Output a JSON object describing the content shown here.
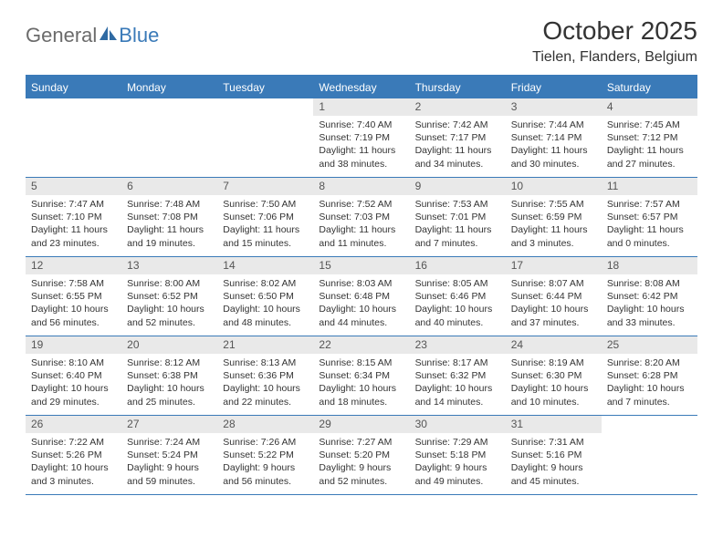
{
  "logo": {
    "text1": "General",
    "text2": "Blue"
  },
  "title": "October 2025",
  "location": "Tielen, Flanders, Belgium",
  "colors": {
    "accent": "#3a7ab8",
    "header_bg": "#3a7ab8",
    "daynum_bg": "#e9e9e9",
    "text": "#333333",
    "logo_grey": "#6b6b6b"
  },
  "day_headers": [
    "Sunday",
    "Monday",
    "Tuesday",
    "Wednesday",
    "Thursday",
    "Friday",
    "Saturday"
  ],
  "weeks": [
    [
      {
        "day": "",
        "sunrise": "",
        "sunset": "",
        "daylight": ""
      },
      {
        "day": "",
        "sunrise": "",
        "sunset": "",
        "daylight": ""
      },
      {
        "day": "",
        "sunrise": "",
        "sunset": "",
        "daylight": ""
      },
      {
        "day": "1",
        "sunrise": "Sunrise: 7:40 AM",
        "sunset": "Sunset: 7:19 PM",
        "daylight": "Daylight: 11 hours and 38 minutes."
      },
      {
        "day": "2",
        "sunrise": "Sunrise: 7:42 AM",
        "sunset": "Sunset: 7:17 PM",
        "daylight": "Daylight: 11 hours and 34 minutes."
      },
      {
        "day": "3",
        "sunrise": "Sunrise: 7:44 AM",
        "sunset": "Sunset: 7:14 PM",
        "daylight": "Daylight: 11 hours and 30 minutes."
      },
      {
        "day": "4",
        "sunrise": "Sunrise: 7:45 AM",
        "sunset": "Sunset: 7:12 PM",
        "daylight": "Daylight: 11 hours and 27 minutes."
      }
    ],
    [
      {
        "day": "5",
        "sunrise": "Sunrise: 7:47 AM",
        "sunset": "Sunset: 7:10 PM",
        "daylight": "Daylight: 11 hours and 23 minutes."
      },
      {
        "day": "6",
        "sunrise": "Sunrise: 7:48 AM",
        "sunset": "Sunset: 7:08 PM",
        "daylight": "Daylight: 11 hours and 19 minutes."
      },
      {
        "day": "7",
        "sunrise": "Sunrise: 7:50 AM",
        "sunset": "Sunset: 7:06 PM",
        "daylight": "Daylight: 11 hours and 15 minutes."
      },
      {
        "day": "8",
        "sunrise": "Sunrise: 7:52 AM",
        "sunset": "Sunset: 7:03 PM",
        "daylight": "Daylight: 11 hours and 11 minutes."
      },
      {
        "day": "9",
        "sunrise": "Sunrise: 7:53 AM",
        "sunset": "Sunset: 7:01 PM",
        "daylight": "Daylight: 11 hours and 7 minutes."
      },
      {
        "day": "10",
        "sunrise": "Sunrise: 7:55 AM",
        "sunset": "Sunset: 6:59 PM",
        "daylight": "Daylight: 11 hours and 3 minutes."
      },
      {
        "day": "11",
        "sunrise": "Sunrise: 7:57 AM",
        "sunset": "Sunset: 6:57 PM",
        "daylight": "Daylight: 11 hours and 0 minutes."
      }
    ],
    [
      {
        "day": "12",
        "sunrise": "Sunrise: 7:58 AM",
        "sunset": "Sunset: 6:55 PM",
        "daylight": "Daylight: 10 hours and 56 minutes."
      },
      {
        "day": "13",
        "sunrise": "Sunrise: 8:00 AM",
        "sunset": "Sunset: 6:52 PM",
        "daylight": "Daylight: 10 hours and 52 minutes."
      },
      {
        "day": "14",
        "sunrise": "Sunrise: 8:02 AM",
        "sunset": "Sunset: 6:50 PM",
        "daylight": "Daylight: 10 hours and 48 minutes."
      },
      {
        "day": "15",
        "sunrise": "Sunrise: 8:03 AM",
        "sunset": "Sunset: 6:48 PM",
        "daylight": "Daylight: 10 hours and 44 minutes."
      },
      {
        "day": "16",
        "sunrise": "Sunrise: 8:05 AM",
        "sunset": "Sunset: 6:46 PM",
        "daylight": "Daylight: 10 hours and 40 minutes."
      },
      {
        "day": "17",
        "sunrise": "Sunrise: 8:07 AM",
        "sunset": "Sunset: 6:44 PM",
        "daylight": "Daylight: 10 hours and 37 minutes."
      },
      {
        "day": "18",
        "sunrise": "Sunrise: 8:08 AM",
        "sunset": "Sunset: 6:42 PM",
        "daylight": "Daylight: 10 hours and 33 minutes."
      }
    ],
    [
      {
        "day": "19",
        "sunrise": "Sunrise: 8:10 AM",
        "sunset": "Sunset: 6:40 PM",
        "daylight": "Daylight: 10 hours and 29 minutes."
      },
      {
        "day": "20",
        "sunrise": "Sunrise: 8:12 AM",
        "sunset": "Sunset: 6:38 PM",
        "daylight": "Daylight: 10 hours and 25 minutes."
      },
      {
        "day": "21",
        "sunrise": "Sunrise: 8:13 AM",
        "sunset": "Sunset: 6:36 PM",
        "daylight": "Daylight: 10 hours and 22 minutes."
      },
      {
        "day": "22",
        "sunrise": "Sunrise: 8:15 AM",
        "sunset": "Sunset: 6:34 PM",
        "daylight": "Daylight: 10 hours and 18 minutes."
      },
      {
        "day": "23",
        "sunrise": "Sunrise: 8:17 AM",
        "sunset": "Sunset: 6:32 PM",
        "daylight": "Daylight: 10 hours and 14 minutes."
      },
      {
        "day": "24",
        "sunrise": "Sunrise: 8:19 AM",
        "sunset": "Sunset: 6:30 PM",
        "daylight": "Daylight: 10 hours and 10 minutes."
      },
      {
        "day": "25",
        "sunrise": "Sunrise: 8:20 AM",
        "sunset": "Sunset: 6:28 PM",
        "daylight": "Daylight: 10 hours and 7 minutes."
      }
    ],
    [
      {
        "day": "26",
        "sunrise": "Sunrise: 7:22 AM",
        "sunset": "Sunset: 5:26 PM",
        "daylight": "Daylight: 10 hours and 3 minutes."
      },
      {
        "day": "27",
        "sunrise": "Sunrise: 7:24 AM",
        "sunset": "Sunset: 5:24 PM",
        "daylight": "Daylight: 9 hours and 59 minutes."
      },
      {
        "day": "28",
        "sunrise": "Sunrise: 7:26 AM",
        "sunset": "Sunset: 5:22 PM",
        "daylight": "Daylight: 9 hours and 56 minutes."
      },
      {
        "day": "29",
        "sunrise": "Sunrise: 7:27 AM",
        "sunset": "Sunset: 5:20 PM",
        "daylight": "Daylight: 9 hours and 52 minutes."
      },
      {
        "day": "30",
        "sunrise": "Sunrise: 7:29 AM",
        "sunset": "Sunset: 5:18 PM",
        "daylight": "Daylight: 9 hours and 49 minutes."
      },
      {
        "day": "31",
        "sunrise": "Sunrise: 7:31 AM",
        "sunset": "Sunset: 5:16 PM",
        "daylight": "Daylight: 9 hours and 45 minutes."
      },
      {
        "day": "",
        "sunrise": "",
        "sunset": "",
        "daylight": ""
      }
    ]
  ]
}
